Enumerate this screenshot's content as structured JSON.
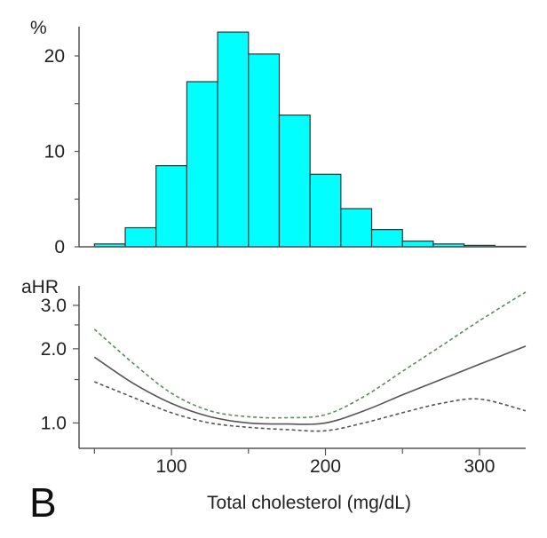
{
  "panel_label": "B",
  "colors": {
    "bar_fill": "#00ffff",
    "bar_stroke": "#333333",
    "axis": "#555555",
    "estimate_line": "#555555",
    "upper_ci": "#5e8a5e",
    "lower_ci": "#555555"
  },
  "chart_data": [
    {
      "type": "bar",
      "subtype": "histogram",
      "ylabel": "%",
      "ylim": [
        0,
        24
      ],
      "yticks": [
        0,
        10,
        20
      ],
      "ytick_labels": [
        "0",
        "10",
        "20"
      ],
      "xlim": [
        40,
        330
      ],
      "bin_width": 20,
      "bin_starts": [
        50,
        70,
        90,
        110,
        130,
        150,
        170,
        190,
        210,
        230,
        250,
        270,
        290,
        310
      ],
      "values": [
        0.3,
        2.0,
        8.5,
        17.3,
        22.5,
        20.2,
        13.8,
        7.6,
        4.0,
        1.8,
        0.6,
        0.3,
        0.15,
        0.05
      ],
      "grid": false
    },
    {
      "type": "line",
      "ylabel": "aHR",
      "xlabel": "Total cholesterol (mg/dL)",
      "xlim": [
        40,
        330
      ],
      "xticks": [
        100,
        200,
        300
      ],
      "xtick_labels": [
        "100",
        "200",
        "300"
      ],
      "ylim": [
        0.85,
        3.6
      ],
      "yscale": "log",
      "yticks": [
        1.0,
        2.0,
        3.0
      ],
      "ytick_labels": [
        "1.0",
        "2.0",
        "3.0"
      ],
      "grid": false,
      "x": [
        50,
        75,
        100,
        125,
        150,
        175,
        200,
        225,
        250,
        275,
        300,
        330
      ],
      "series": [
        {
          "style": "solid",
          "values": [
            1.85,
            1.45,
            1.2,
            1.06,
            1.0,
            0.99,
            1.0,
            1.12,
            1.3,
            1.5,
            1.73,
            2.05
          ]
        },
        {
          "style": "dashed",
          "values": [
            2.4,
            1.75,
            1.32,
            1.12,
            1.06,
            1.05,
            1.08,
            1.28,
            1.62,
            2.05,
            2.6,
            3.4
          ]
        },
        {
          "style": "dashed",
          "values": [
            1.47,
            1.27,
            1.1,
            1.0,
            0.96,
            0.94,
            0.93,
            1.0,
            1.1,
            1.2,
            1.25,
            1.12
          ]
        }
      ]
    }
  ]
}
